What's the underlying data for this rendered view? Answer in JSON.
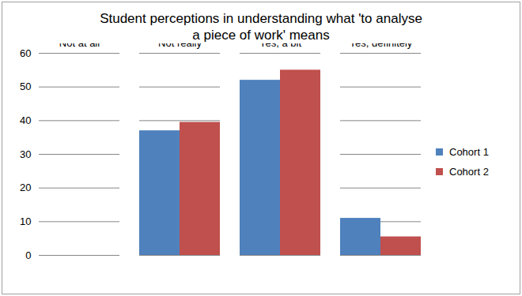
{
  "chart_data": {
    "type": "bar",
    "title": "Student perceptions in understanding what 'to analyse a piece of work' means",
    "categories": [
      "Not at all",
      "Not really",
      "Yes, a bit",
      "Yes, definitely"
    ],
    "series": [
      {
        "name": "Cohort 1",
        "color": "#4f81bd",
        "values": [
          0,
          37,
          52,
          11
        ]
      },
      {
        "name": "Cohort 2",
        "color": "#c0504d",
        "values": [
          0,
          39.5,
          55,
          5.5
        ]
      }
    ],
    "ylim": [
      0,
      60
    ],
    "yticks": [
      0,
      10,
      20,
      30,
      40,
      50,
      60
    ],
    "grid": true,
    "legend": "right"
  }
}
